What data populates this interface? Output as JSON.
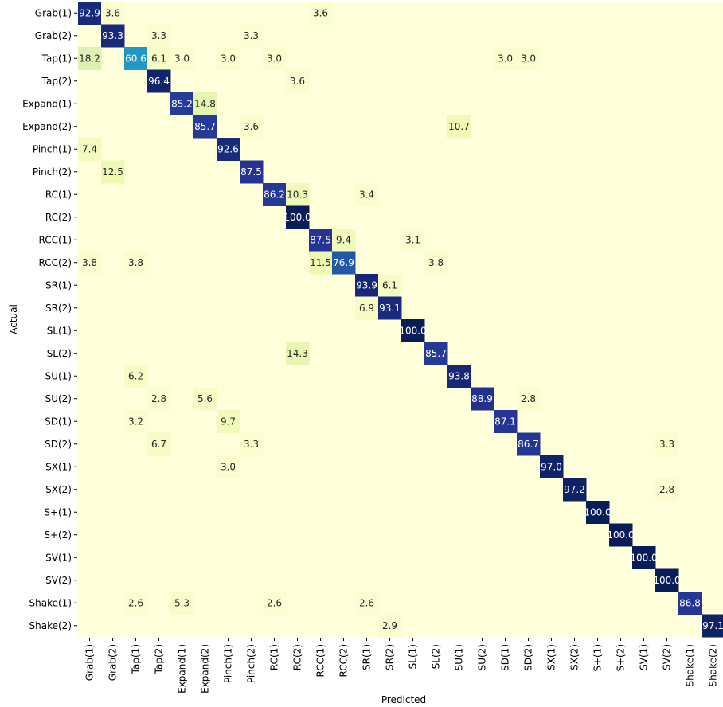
{
  "chart_data": {
    "type": "heatmap",
    "title": "",
    "xlabel": "Predicted",
    "ylabel": "Actual",
    "rows": [
      "Grab(1)",
      "Grab(2)",
      "Tap(1)",
      "Tap(2)",
      "Expand(1)",
      "Expand(2)",
      "Pinch(1)",
      "Pinch(2)",
      "RC(1)",
      "RC(2)",
      "RCC(1)",
      "RCC(2)",
      "SR(1)",
      "SR(2)",
      "SL(1)",
      "SL(2)",
      "SU(1)",
      "SU(2)",
      "SD(1)",
      "SD(2)",
      "SX(1)",
      "SX(2)",
      "S+(1)",
      "S+(2)",
      "SV(1)",
      "SV(2)",
      "Shake(1)",
      "Shake(2)"
    ],
    "columns": [
      "Grab(1)",
      "Grab(2)",
      "Tap(1)",
      "Tap(2)",
      "Expand(1)",
      "Expand(2)",
      "Pinch(1)",
      "Pinch(2)",
      "RC(1)",
      "RC(2)",
      "RCC(1)",
      "RCC(2)",
      "SR(1)",
      "SR(2)",
      "SL(1)",
      "SL(2)",
      "SU(1)",
      "SU(2)",
      "SD(1)",
      "SD(2)",
      "SX(1)",
      "SX(2)",
      "S+(1)",
      "S+(2)",
      "SV(1)",
      "SV(2)",
      "Shake(1)",
      "Shake(2)"
    ],
    "value_range": [
      0,
      100
    ],
    "colormap": [
      "#ffffd9",
      "#edf8b1",
      "#c7e9b4",
      "#7fcdbb",
      "#41b6c4",
      "#1d91c0",
      "#225ea8",
      "#253494",
      "#081d58"
    ],
    "cells": [
      {
        "row": 0,
        "col": 0,
        "value": 92.9
      },
      {
        "row": 0,
        "col": 1,
        "value": 3.6
      },
      {
        "row": 0,
        "col": 10,
        "value": 3.6
      },
      {
        "row": 1,
        "col": 1,
        "value": 93.3
      },
      {
        "row": 1,
        "col": 3,
        "value": 3.3
      },
      {
        "row": 1,
        "col": 7,
        "value": 3.3
      },
      {
        "row": 2,
        "col": 0,
        "value": 18.2
      },
      {
        "row": 2,
        "col": 2,
        "value": 60.6
      },
      {
        "row": 2,
        "col": 3,
        "value": 6.1
      },
      {
        "row": 2,
        "col": 4,
        "value": 3.0
      },
      {
        "row": 2,
        "col": 6,
        "value": 3.0
      },
      {
        "row": 2,
        "col": 8,
        "value": 3.0
      },
      {
        "row": 2,
        "col": 18,
        "value": 3.0
      },
      {
        "row": 2,
        "col": 19,
        "value": 3.0
      },
      {
        "row": 3,
        "col": 3,
        "value": 96.4
      },
      {
        "row": 3,
        "col": 9,
        "value": 3.6
      },
      {
        "row": 4,
        "col": 4,
        "value": 85.2
      },
      {
        "row": 4,
        "col": 5,
        "value": 14.8
      },
      {
        "row": 5,
        "col": 5,
        "value": 85.7
      },
      {
        "row": 5,
        "col": 7,
        "value": 3.6
      },
      {
        "row": 5,
        "col": 16,
        "value": 10.7
      },
      {
        "row": 6,
        "col": 0,
        "value": 7.4
      },
      {
        "row": 6,
        "col": 6,
        "value": 92.6
      },
      {
        "row": 7,
        "col": 1,
        "value": 12.5
      },
      {
        "row": 7,
        "col": 7,
        "value": 87.5
      },
      {
        "row": 8,
        "col": 8,
        "value": 86.2
      },
      {
        "row": 8,
        "col": 9,
        "value": 10.3
      },
      {
        "row": 8,
        "col": 12,
        "value": 3.4
      },
      {
        "row": 9,
        "col": 9,
        "value": 100.0
      },
      {
        "row": 10,
        "col": 10,
        "value": 87.5
      },
      {
        "row": 10,
        "col": 11,
        "value": 9.4
      },
      {
        "row": 10,
        "col": 14,
        "value": 3.1
      },
      {
        "row": 11,
        "col": 0,
        "value": 3.8
      },
      {
        "row": 11,
        "col": 2,
        "value": 3.8
      },
      {
        "row": 11,
        "col": 10,
        "value": 11.5
      },
      {
        "row": 11,
        "col": 11,
        "value": 76.9
      },
      {
        "row": 11,
        "col": 15,
        "value": 3.8
      },
      {
        "row": 12,
        "col": 12,
        "value": 93.9
      },
      {
        "row": 12,
        "col": 13,
        "value": 6.1
      },
      {
        "row": 13,
        "col": 12,
        "value": 6.9
      },
      {
        "row": 13,
        "col": 13,
        "value": 93.1
      },
      {
        "row": 14,
        "col": 14,
        "value": 100.0
      },
      {
        "row": 15,
        "col": 9,
        "value": 14.3
      },
      {
        "row": 15,
        "col": 15,
        "value": 85.7
      },
      {
        "row": 16,
        "col": 2,
        "value": 6.2
      },
      {
        "row": 16,
        "col": 16,
        "value": 93.8
      },
      {
        "row": 17,
        "col": 3,
        "value": 2.8
      },
      {
        "row": 17,
        "col": 5,
        "value": 5.6
      },
      {
        "row": 17,
        "col": 17,
        "value": 88.9
      },
      {
        "row": 17,
        "col": 19,
        "value": 2.8
      },
      {
        "row": 18,
        "col": 2,
        "value": 3.2
      },
      {
        "row": 18,
        "col": 6,
        "value": 9.7
      },
      {
        "row": 18,
        "col": 18,
        "value": 87.1
      },
      {
        "row": 19,
        "col": 3,
        "value": 6.7
      },
      {
        "row": 19,
        "col": 7,
        "value": 3.3
      },
      {
        "row": 19,
        "col": 19,
        "value": 86.7
      },
      {
        "row": 19,
        "col": 25,
        "value": 3.3
      },
      {
        "row": 20,
        "col": 6,
        "value": 3.0
      },
      {
        "row": 20,
        "col": 20,
        "value": 97.0
      },
      {
        "row": 21,
        "col": 21,
        "value": 97.2
      },
      {
        "row": 21,
        "col": 25,
        "value": 2.8
      },
      {
        "row": 22,
        "col": 22,
        "value": 100.0
      },
      {
        "row": 23,
        "col": 23,
        "value": 100.0
      },
      {
        "row": 24,
        "col": 24,
        "value": 100.0
      },
      {
        "row": 25,
        "col": 25,
        "value": 100.0
      },
      {
        "row": 26,
        "col": 2,
        "value": 2.6
      },
      {
        "row": 26,
        "col": 4,
        "value": 5.3
      },
      {
        "row": 26,
        "col": 8,
        "value": 2.6
      },
      {
        "row": 26,
        "col": 12,
        "value": 2.6
      },
      {
        "row": 26,
        "col": 26,
        "value": 86.8
      },
      {
        "row": 27,
        "col": 13,
        "value": 2.9
      },
      {
        "row": 27,
        "col": 27,
        "value": 97.1
      }
    ]
  }
}
